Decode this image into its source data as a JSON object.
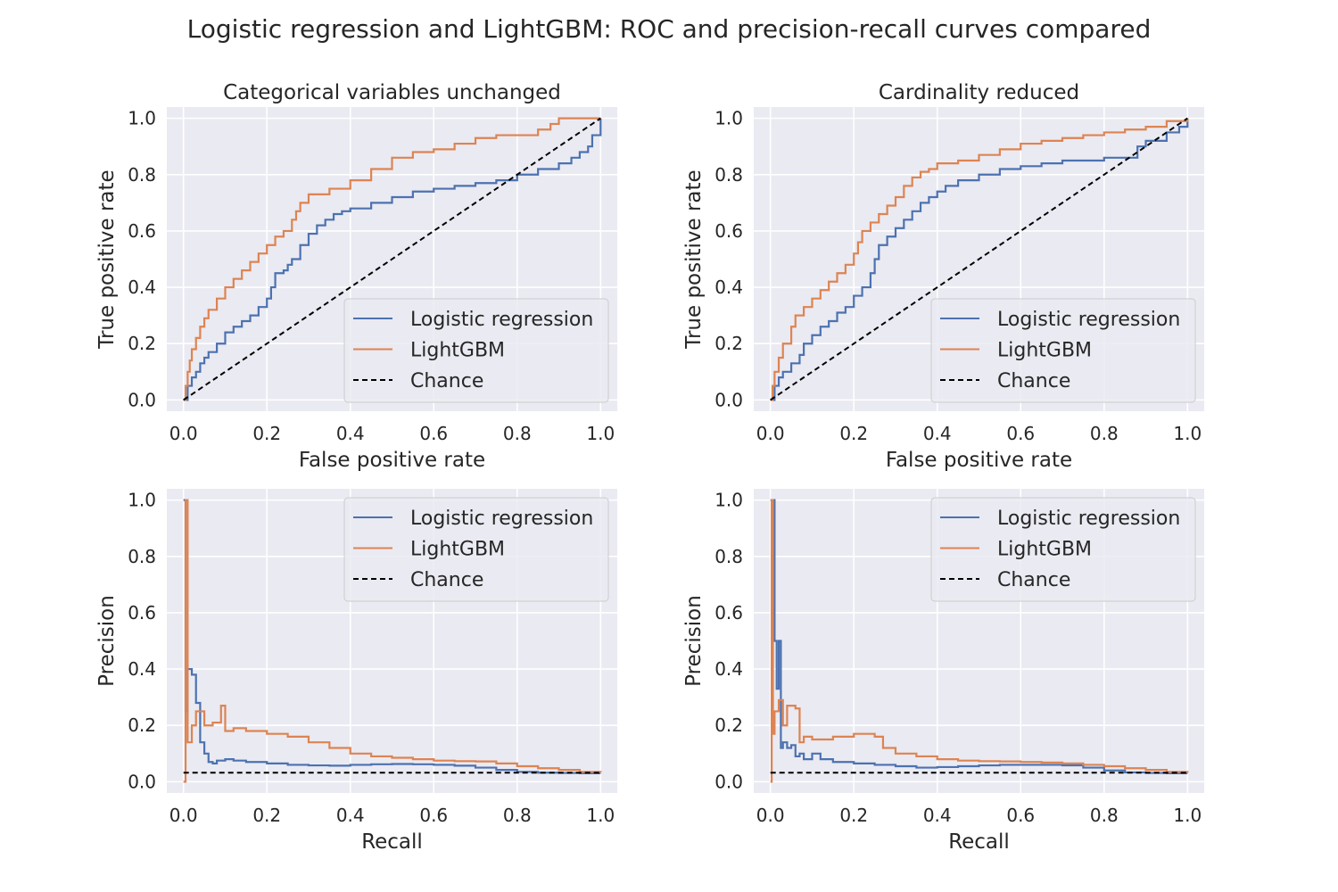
{
  "figure": {
    "title": "Logistic regression and LightGBM: ROC and precision-recall curves compared",
    "colors": {
      "background": "#eaeaf2",
      "grid": "#ffffff",
      "logistic": "#4c72b0",
      "lightgbm": "#dd8452",
      "chance": "#000000"
    }
  },
  "chart_data": [
    {
      "type": "line",
      "title": "Categorical variables unchanged",
      "xlabel": "False positive rate",
      "ylabel": "True positive rate",
      "xlim": [
        -0.04,
        1.04
      ],
      "ylim": [
        -0.04,
        1.04
      ],
      "xticks": [
        0.0,
        0.2,
        0.4,
        0.6,
        0.8,
        1.0
      ],
      "yticks": [
        0.0,
        0.2,
        0.4,
        0.6,
        0.8,
        1.0
      ],
      "tick_labels": [
        "0.0",
        "0.2",
        "0.4",
        "0.6",
        "0.8",
        "1.0"
      ],
      "grid": true,
      "legend_position": "lower-right",
      "series": [
        {
          "name": "Logistic regression",
          "color": "#4c72b0",
          "dashed": false,
          "step": true,
          "x": [
            0,
            0.01,
            0.02,
            0.03,
            0.04,
            0.05,
            0.06,
            0.08,
            0.1,
            0.12,
            0.14,
            0.16,
            0.18,
            0.2,
            0.21,
            0.22,
            0.24,
            0.25,
            0.26,
            0.28,
            0.3,
            0.32,
            0.34,
            0.36,
            0.38,
            0.4,
            0.45,
            0.5,
            0.55,
            0.6,
            0.65,
            0.7,
            0.75,
            0.8,
            0.85,
            0.9,
            0.93,
            0.95,
            0.97,
            0.98,
            1.0
          ],
          "y": [
            0,
            0.05,
            0.08,
            0.1,
            0.13,
            0.15,
            0.17,
            0.2,
            0.24,
            0.26,
            0.28,
            0.3,
            0.33,
            0.36,
            0.4,
            0.45,
            0.46,
            0.48,
            0.5,
            0.55,
            0.59,
            0.62,
            0.64,
            0.66,
            0.67,
            0.68,
            0.7,
            0.72,
            0.74,
            0.75,
            0.76,
            0.77,
            0.78,
            0.8,
            0.82,
            0.84,
            0.86,
            0.88,
            0.9,
            0.94,
            1.0
          ]
        },
        {
          "name": "LightGBM",
          "color": "#dd8452",
          "dashed": false,
          "step": true,
          "x": [
            0,
            0.005,
            0.01,
            0.015,
            0.02,
            0.03,
            0.04,
            0.05,
            0.06,
            0.08,
            0.1,
            0.12,
            0.14,
            0.16,
            0.18,
            0.2,
            0.22,
            0.24,
            0.26,
            0.27,
            0.28,
            0.3,
            0.35,
            0.4,
            0.45,
            0.5,
            0.55,
            0.6,
            0.65,
            0.7,
            0.75,
            0.8,
            0.85,
            0.88,
            0.9,
            1.0
          ],
          "y": [
            0,
            0.05,
            0.1,
            0.14,
            0.18,
            0.22,
            0.26,
            0.29,
            0.32,
            0.36,
            0.4,
            0.43,
            0.46,
            0.49,
            0.52,
            0.55,
            0.58,
            0.6,
            0.64,
            0.67,
            0.7,
            0.73,
            0.75,
            0.78,
            0.82,
            0.86,
            0.88,
            0.89,
            0.91,
            0.93,
            0.94,
            0.94,
            0.96,
            0.98,
            1.0,
            1.0
          ]
        },
        {
          "name": "Chance",
          "color": "#000000",
          "dashed": true,
          "step": false,
          "x": [
            0,
            1
          ],
          "y": [
            0,
            1
          ]
        }
      ]
    },
    {
      "type": "line",
      "title": "Cardinality reduced",
      "xlabel": "False positive rate",
      "ylabel": "True positive rate",
      "xlim": [
        -0.04,
        1.04
      ],
      "ylim": [
        -0.04,
        1.04
      ],
      "xticks": [
        0.0,
        0.2,
        0.4,
        0.6,
        0.8,
        1.0
      ],
      "yticks": [
        0.0,
        0.2,
        0.4,
        0.6,
        0.8,
        1.0
      ],
      "tick_labels": [
        "0.0",
        "0.2",
        "0.4",
        "0.6",
        "0.8",
        "1.0"
      ],
      "grid": true,
      "legend_position": "lower-right",
      "series": [
        {
          "name": "Logistic regression",
          "color": "#4c72b0",
          "dashed": false,
          "step": true,
          "x": [
            0,
            0.01,
            0.02,
            0.03,
            0.05,
            0.07,
            0.08,
            0.1,
            0.12,
            0.14,
            0.16,
            0.18,
            0.2,
            0.22,
            0.24,
            0.25,
            0.26,
            0.28,
            0.3,
            0.32,
            0.34,
            0.36,
            0.38,
            0.4,
            0.42,
            0.45,
            0.5,
            0.55,
            0.6,
            0.65,
            0.7,
            0.75,
            0.8,
            0.85,
            0.88,
            0.9,
            0.95,
            0.98,
            1.0
          ],
          "y": [
            0,
            0.05,
            0.08,
            0.1,
            0.13,
            0.16,
            0.2,
            0.23,
            0.26,
            0.28,
            0.31,
            0.33,
            0.37,
            0.4,
            0.45,
            0.5,
            0.55,
            0.58,
            0.61,
            0.64,
            0.67,
            0.7,
            0.72,
            0.74,
            0.76,
            0.78,
            0.8,
            0.82,
            0.83,
            0.84,
            0.85,
            0.85,
            0.86,
            0.86,
            0.9,
            0.92,
            0.95,
            0.97,
            1.0
          ]
        },
        {
          "name": "LightGBM",
          "color": "#dd8452",
          "dashed": false,
          "step": true,
          "x": [
            0,
            0.005,
            0.01,
            0.02,
            0.03,
            0.05,
            0.06,
            0.08,
            0.1,
            0.12,
            0.14,
            0.16,
            0.18,
            0.2,
            0.21,
            0.22,
            0.24,
            0.26,
            0.28,
            0.3,
            0.32,
            0.34,
            0.36,
            0.38,
            0.4,
            0.45,
            0.5,
            0.55,
            0.6,
            0.65,
            0.7,
            0.75,
            0.8,
            0.85,
            0.9,
            0.95,
            1.0
          ],
          "y": [
            0,
            0.05,
            0.1,
            0.15,
            0.2,
            0.26,
            0.3,
            0.33,
            0.36,
            0.39,
            0.42,
            0.45,
            0.48,
            0.52,
            0.56,
            0.6,
            0.63,
            0.66,
            0.69,
            0.72,
            0.76,
            0.79,
            0.81,
            0.82,
            0.84,
            0.85,
            0.87,
            0.89,
            0.91,
            0.92,
            0.93,
            0.94,
            0.95,
            0.96,
            0.97,
            0.99,
            1.0
          ]
        },
        {
          "name": "Chance",
          "color": "#000000",
          "dashed": true,
          "step": false,
          "x": [
            0,
            1
          ],
          "y": [
            0,
            1
          ]
        }
      ]
    },
    {
      "type": "line",
      "title": "",
      "xlabel": "Recall",
      "ylabel": "Precision",
      "xlim": [
        -0.04,
        1.04
      ],
      "ylim": [
        -0.04,
        1.04
      ],
      "xticks": [
        0.0,
        0.2,
        0.4,
        0.6,
        0.8,
        1.0
      ],
      "yticks": [
        0.0,
        0.2,
        0.4,
        0.6,
        0.8,
        1.0
      ],
      "tick_labels": [
        "0.0",
        "0.2",
        "0.4",
        "0.6",
        "0.8",
        "1.0"
      ],
      "grid": true,
      "legend_position": "upper-right",
      "series": [
        {
          "name": "Logistic regression",
          "color": "#4c72b0",
          "dashed": false,
          "step": true,
          "x": [
            0,
            0.005,
            0.01,
            0.02,
            0.03,
            0.04,
            0.05,
            0.06,
            0.07,
            0.08,
            0.1,
            0.12,
            0.15,
            0.2,
            0.25,
            0.3,
            0.35,
            0.4,
            0.45,
            0.5,
            0.55,
            0.6,
            0.65,
            0.7,
            0.75,
            0.8,
            0.85,
            0.9,
            0.95,
            1.0
          ],
          "y": [
            1.0,
            0.25,
            0.4,
            0.38,
            0.28,
            0.14,
            0.1,
            0.07,
            0.065,
            0.075,
            0.08,
            0.075,
            0.07,
            0.065,
            0.06,
            0.058,
            0.057,
            0.06,
            0.062,
            0.063,
            0.062,
            0.06,
            0.057,
            0.05,
            0.042,
            0.035,
            0.032,
            0.031,
            0.03,
            0.03
          ]
        },
        {
          "name": "LightGBM",
          "color": "#dd8452",
          "dashed": false,
          "step": true,
          "x": [
            0,
            0.005,
            0.01,
            0.02,
            0.03,
            0.05,
            0.07,
            0.09,
            0.1,
            0.12,
            0.15,
            0.2,
            0.25,
            0.3,
            0.35,
            0.4,
            0.45,
            0.5,
            0.55,
            0.6,
            0.65,
            0.7,
            0.75,
            0.8,
            0.85,
            0.9,
            0.95,
            1.0
          ],
          "y": [
            0.0,
            1.0,
            0.14,
            0.2,
            0.25,
            0.2,
            0.21,
            0.27,
            0.18,
            0.19,
            0.18,
            0.17,
            0.16,
            0.14,
            0.12,
            0.1,
            0.09,
            0.085,
            0.08,
            0.075,
            0.073,
            0.072,
            0.065,
            0.055,
            0.048,
            0.042,
            0.035,
            0.032
          ]
        },
        {
          "name": "Chance",
          "color": "#000000",
          "dashed": true,
          "step": false,
          "x": [
            0,
            1
          ],
          "y": [
            0.032,
            0.032
          ]
        }
      ]
    },
    {
      "type": "line",
      "title": "",
      "xlabel": "Recall",
      "ylabel": "Precision",
      "xlim": [
        -0.04,
        1.04
      ],
      "ylim": [
        -0.04,
        1.04
      ],
      "xticks": [
        0.0,
        0.2,
        0.4,
        0.6,
        0.8,
        1.0
      ],
      "yticks": [
        0.0,
        0.2,
        0.4,
        0.6,
        0.8,
        1.0
      ],
      "tick_labels": [
        "0.0",
        "0.2",
        "0.4",
        "0.6",
        "0.8",
        "1.0"
      ],
      "grid": true,
      "legend_position": "upper-right",
      "series": [
        {
          "name": "Logistic regression",
          "color": "#4c72b0",
          "dashed": false,
          "step": true,
          "x": [
            0,
            0.01,
            0.015,
            0.02,
            0.025,
            0.03,
            0.04,
            0.05,
            0.06,
            0.07,
            0.08,
            0.1,
            0.12,
            0.15,
            0.2,
            0.25,
            0.3,
            0.35,
            0.4,
            0.45,
            0.5,
            0.55,
            0.6,
            0.65,
            0.7,
            0.75,
            0.8,
            0.85,
            0.9,
            0.95,
            1.0
          ],
          "y": [
            1.0,
            0.5,
            0.33,
            0.5,
            0.12,
            0.14,
            0.12,
            0.13,
            0.09,
            0.1,
            0.08,
            0.1,
            0.08,
            0.07,
            0.065,
            0.06,
            0.055,
            0.05,
            0.052,
            0.055,
            0.058,
            0.06,
            0.06,
            0.06,
            0.058,
            0.05,
            0.04,
            0.033,
            0.031,
            0.03,
            0.03
          ]
        },
        {
          "name": "LightGBM",
          "color": "#dd8452",
          "dashed": false,
          "step": true,
          "x": [
            0,
            0.003,
            0.006,
            0.01,
            0.02,
            0.03,
            0.04,
            0.06,
            0.07,
            0.08,
            0.1,
            0.15,
            0.2,
            0.25,
            0.27,
            0.3,
            0.35,
            0.4,
            0.45,
            0.5,
            0.55,
            0.6,
            0.65,
            0.7,
            0.75,
            0.8,
            0.85,
            0.9,
            0.95,
            1.0
          ],
          "y": [
            0.0,
            1.0,
            0.17,
            0.25,
            0.29,
            0.2,
            0.27,
            0.26,
            0.14,
            0.16,
            0.15,
            0.16,
            0.17,
            0.16,
            0.12,
            0.1,
            0.09,
            0.08,
            0.075,
            0.073,
            0.072,
            0.07,
            0.068,
            0.065,
            0.06,
            0.055,
            0.048,
            0.042,
            0.035,
            0.032
          ]
        },
        {
          "name": "Chance",
          "color": "#000000",
          "dashed": true,
          "step": false,
          "x": [
            0,
            1
          ],
          "y": [
            0.032,
            0.032
          ]
        }
      ]
    }
  ]
}
